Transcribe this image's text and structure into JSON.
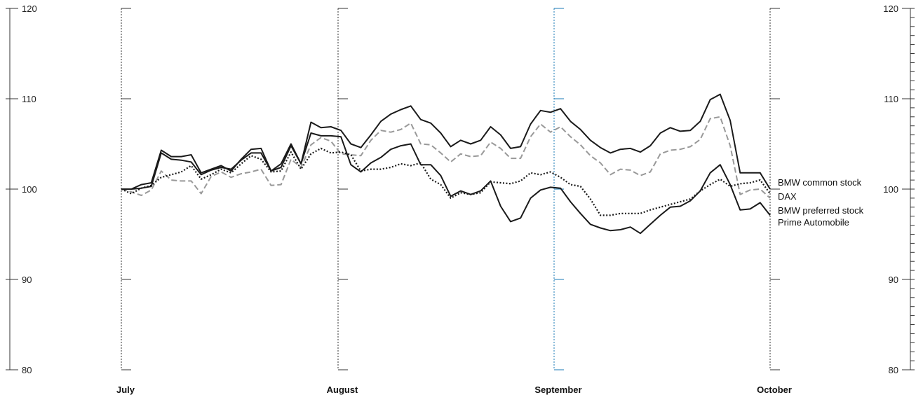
{
  "chart_data": {
    "type": "line",
    "title": "",
    "xlabel": "",
    "ylabel": "",
    "ylim": [
      80,
      120
    ],
    "y_ticks": [
      "80",
      "90",
      "100",
      "110",
      "120"
    ],
    "months": [
      {
        "label": "July",
        "highlight": false
      },
      {
        "label": "August",
        "highlight": false
      },
      {
        "label": "September",
        "highlight": true
      },
      {
        "label": "October",
        "highlight": false
      }
    ],
    "highlight_color": "#1a7ab5",
    "series": [
      {
        "name": "BMW common stock",
        "color": "#1a1a1a",
        "style": "solid",
        "values": [
          100.0,
          100.0,
          100.5,
          100.7,
          104.3,
          103.6,
          103.6,
          103.8,
          101.8,
          102.2,
          102.6,
          102.0,
          103.3,
          104.4,
          104.5,
          102.0,
          102.8,
          105.0,
          102.8,
          107.4,
          106.8,
          106.9,
          106.5,
          105.0,
          104.6,
          106.0,
          107.5,
          108.3,
          108.8,
          109.2,
          107.7,
          107.3,
          106.2,
          104.7,
          105.4,
          105.0,
          105.4,
          106.9,
          106.0,
          104.5,
          104.7,
          107.2,
          108.7,
          108.5,
          108.9,
          107.5,
          106.6,
          105.4,
          104.6,
          104.0,
          104.4,
          104.5,
          104.1,
          104.8,
          106.2,
          106.8,
          106.4,
          106.5,
          107.5,
          109.9,
          110.5,
          107.6,
          101.8,
          101.8,
          101.8,
          100.0
        ]
      },
      {
        "name": "DAX",
        "color": "#999999",
        "style": "dashed",
        "values": [
          100.0,
          99.7,
          99.3,
          99.9,
          102.0,
          101.0,
          100.9,
          100.9,
          99.5,
          101.4,
          101.9,
          101.3,
          101.7,
          101.9,
          102.2,
          100.4,
          100.5,
          103.3,
          102.4,
          104.9,
          105.7,
          105.3,
          103.9,
          103.8,
          103.7,
          105.4,
          106.5,
          106.3,
          106.6,
          107.3,
          105.0,
          104.9,
          104.0,
          103.0,
          103.9,
          103.6,
          103.7,
          105.2,
          104.5,
          103.4,
          103.4,
          105.8,
          107.2,
          106.3,
          106.9,
          105.8,
          104.9,
          103.7,
          102.9,
          101.6,
          102.2,
          102.1,
          101.5,
          101.9,
          103.9,
          104.3,
          104.4,
          104.7,
          105.5,
          107.8,
          108.0,
          104.8,
          99.4,
          99.9,
          100.0,
          99.0
        ]
      },
      {
        "name": "BMW preferred stock",
        "color": "#1a1a1a",
        "style": "dotted",
        "values": [
          100.0,
          99.5,
          100.1,
          100.4,
          101.3,
          101.6,
          101.9,
          102.6,
          101.1,
          101.6,
          102.2,
          101.8,
          102.8,
          103.7,
          103.3,
          101.9,
          102.0,
          104.1,
          102.2,
          103.9,
          104.5,
          104.0,
          104.1,
          103.8,
          102.0,
          102.2,
          102.2,
          102.4,
          102.8,
          102.6,
          102.9,
          101.1,
          100.5,
          99.0,
          99.6,
          99.4,
          99.6,
          100.8,
          100.7,
          100.6,
          100.9,
          101.8,
          101.6,
          101.9,
          101.3,
          100.5,
          100.3,
          98.9,
          97.1,
          97.1,
          97.3,
          97.3,
          97.3,
          97.7,
          98.0,
          98.3,
          98.6,
          98.9,
          99.8,
          100.5,
          101.1,
          100.3,
          100.6,
          100.7,
          101.0,
          99.5
        ]
      },
      {
        "name": "Prime Automobile",
        "color": "#1a1a1a",
        "style": "solid",
        "values": [
          100.0,
          100.0,
          100.1,
          100.3,
          104.0,
          103.3,
          103.2,
          103.0,
          101.6,
          102.1,
          102.4,
          102.2,
          103.2,
          104.0,
          104.0,
          102.0,
          102.4,
          104.8,
          102.8,
          106.2,
          105.9,
          105.9,
          105.8,
          102.7,
          101.9,
          102.9,
          103.5,
          104.4,
          104.8,
          105.0,
          102.7,
          102.7,
          101.5,
          99.2,
          99.8,
          99.4,
          99.8,
          100.9,
          98.1,
          96.4,
          96.8,
          99.0,
          99.9,
          100.2,
          100.1,
          98.6,
          97.3,
          96.1,
          95.7,
          95.4,
          95.5,
          95.8,
          95.1,
          96.1,
          97.1,
          98.0,
          98.1,
          98.7,
          99.8,
          101.8,
          102.7,
          100.5,
          97.7,
          97.8,
          98.5,
          97.1
        ]
      }
    ]
  }
}
